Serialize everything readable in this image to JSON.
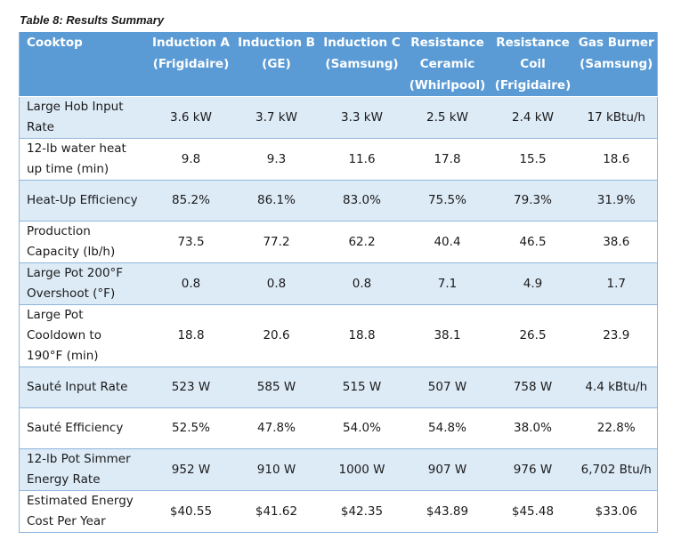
{
  "caption": "Table 8: Results Summary",
  "header": [
    [
      "Cooktop"
    ],
    [
      "Induction A",
      "(Frigidaire)"
    ],
    [
      "Induction B",
      "(GE)"
    ],
    [
      "Induction C",
      "(Samsung)"
    ],
    [
      "Resistance",
      "Ceramic",
      "(Whirlpool)"
    ],
    [
      "Resistance",
      "Coil",
      "(Frigidaire)"
    ],
    [
      "Gas Burner",
      "(Samsung)"
    ]
  ],
  "rows": [
    {
      "label": [
        "Large Hob Input",
        "Rate"
      ],
      "values": [
        "3.6 kW",
        "3.7 kW",
        "3.3 kW",
        "2.5 kW",
        "2.4 kW",
        "17 kBtu/h"
      ]
    },
    {
      "label": [
        "12-lb water heat",
        "up time (min)"
      ],
      "values": [
        "9.8",
        "9.3",
        "11.6",
        "17.8",
        "15.5",
        "18.6"
      ]
    },
    {
      "label": [
        "Heat-Up Efficiency"
      ],
      "values": [
        "85.2%",
        "86.1%",
        "83.0%",
        "75.5%",
        "79.3%",
        "31.9%"
      ]
    },
    {
      "label": [
        "Production",
        "Capacity (lb/h)"
      ],
      "values": [
        "73.5",
        "77.2",
        "62.2",
        "40.4",
        "46.5",
        "38.6"
      ]
    },
    {
      "label": [
        "Large Pot 200°F",
        "Overshoot (°F)"
      ],
      "values": [
        "0.8",
        "0.8",
        "0.8",
        "7.1",
        "4.9",
        "1.7"
      ]
    },
    {
      "label": [
        "Large Pot",
        "Cooldown to",
        "190°F (min)"
      ],
      "values": [
        "18.8",
        "20.6",
        "18.8",
        "38.1",
        "26.5",
        "23.9"
      ]
    },
    {
      "label": [
        "Sauté Input Rate"
      ],
      "values": [
        "523 W",
        "585 W",
        "515 W",
        "507 W",
        "758 W",
        "4.4 kBtu/h"
      ]
    },
    {
      "label": [
        "Sauté Efficiency"
      ],
      "values": [
        "52.5%",
        "47.8%",
        "54.0%",
        "54.8%",
        "38.0%",
        "22.8%"
      ]
    },
    {
      "label": [
        "12-lb Pot Simmer",
        "Energy Rate"
      ],
      "values": [
        "952 W",
        "910 W",
        "1000 W",
        "907 W",
        "976 W",
        "6,702 Btu/h"
      ]
    },
    {
      "label": [
        "Estimated Energy",
        "Cost Per Year"
      ],
      "values": [
        "$40.55",
        "$41.62",
        "$42.35",
        "$43.89",
        "$45.48",
        "$33.06"
      ]
    }
  ],
  "colors": {
    "header_bg": "#5b9bd5",
    "band_bg": "#ddebf7",
    "rule": "#8fb5dc"
  }
}
